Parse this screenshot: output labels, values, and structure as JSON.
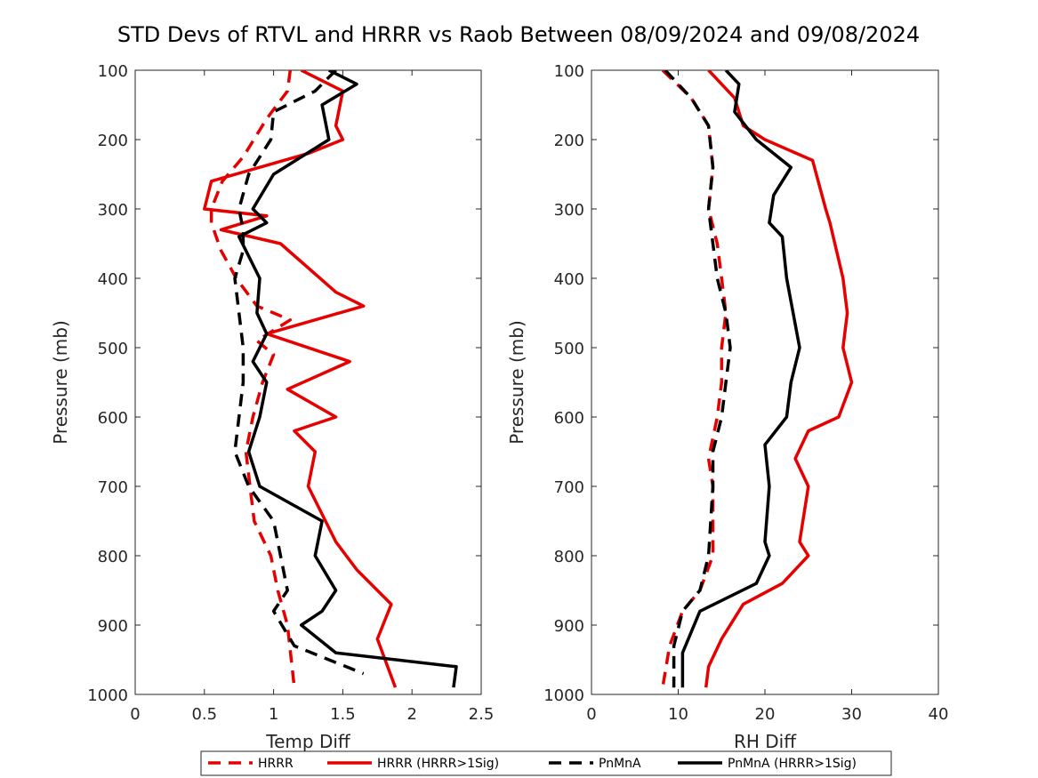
{
  "title": "STD Devs of RTVL and HRRR vs Raob Between 08/09/2024 and 09/08/2024",
  "colors": {
    "hrrr": "#e60000",
    "pnmna": "#000000"
  },
  "legend": {
    "placement": "bottom",
    "entries": [
      {
        "name": "HRRR",
        "color": "#e60000",
        "style": "dashed"
      },
      {
        "name": "HRRR (HRRR>1Sig)",
        "color": "#e60000",
        "style": "solid"
      },
      {
        "name": "PnMnA",
        "color": "#000000",
        "style": "dashed"
      },
      {
        "name": "PnMnA (HRRR>1Sig)",
        "color": "#000000",
        "style": "solid"
      }
    ]
  },
  "chart_data": [
    {
      "type": "line",
      "xlabel": "Temp Diff",
      "ylabel": "Pressure (mb)",
      "xlim": [
        0,
        2.5
      ],
      "ylim": [
        100,
        1000
      ],
      "y_reversed": true,
      "xticks": [
        "0",
        "0.5",
        "1",
        "1.5",
        "2",
        "2.5"
      ],
      "yticks": [
        "100",
        "200",
        "300",
        "400",
        "500",
        "600",
        "700",
        "800",
        "900",
        "1000"
      ],
      "grid": false,
      "series": [
        {
          "name": "HRRR",
          "color": "#e60000",
          "style": "dashed",
          "x": [
            1.12,
            1.1,
            0.95,
            0.78,
            0.63,
            0.55,
            0.55,
            0.62,
            0.73,
            0.88,
            1.12,
            0.88,
            1.0,
            0.92,
            0.85,
            0.8,
            0.83,
            0.86,
            0.98,
            1.03,
            1.1,
            1.15
          ],
          "y": [
            100,
            130,
            170,
            225,
            260,
            300,
            320,
            360,
            400,
            440,
            460,
            490,
            510,
            550,
            600,
            650,
            700,
            750,
            800,
            850,
            900,
            990
          ]
        },
        {
          "name": "HRRR (HRRR>1Sig)",
          "color": "#e60000",
          "style": "solid",
          "x": [
            1.2,
            1.5,
            1.45,
            1.5,
            1.25,
            0.55,
            0.5,
            0.95,
            0.62,
            1.05,
            1.45,
            1.65,
            0.95,
            1.55,
            1.1,
            1.45,
            1.15,
            1.3,
            1.25,
            1.45,
            1.6,
            1.85,
            1.75,
            1.88
          ],
          "y": [
            100,
            130,
            180,
            200,
            220,
            260,
            300,
            310,
            330,
            350,
            420,
            440,
            480,
            520,
            560,
            600,
            620,
            650,
            700,
            780,
            820,
            870,
            920,
            990
          ]
        },
        {
          "name": "PnMnA",
          "color": "#000000",
          "style": "dashed",
          "x": [
            1.45,
            1.3,
            1.0,
            0.98,
            0.82,
            0.75,
            0.78,
            0.78,
            0.72,
            0.75,
            0.78,
            0.78,
            0.75,
            0.72,
            0.82,
            1.0,
            1.05,
            1.1,
            1.0,
            1.15,
            1.65
          ],
          "y": [
            100,
            130,
            160,
            200,
            250,
            300,
            330,
            360,
            400,
            450,
            500,
            550,
            600,
            650,
            700,
            750,
            800,
            850,
            880,
            930,
            970
          ]
        },
        {
          "name": "PnMnA (HRRR>1Sig)",
          "color": "#000000",
          "style": "solid",
          "x": [
            1.4,
            1.6,
            1.35,
            1.4,
            1.0,
            0.85,
            0.95,
            0.75,
            0.9,
            0.88,
            0.95,
            0.85,
            0.95,
            0.9,
            0.82,
            0.9,
            1.35,
            1.3,
            1.45,
            1.35,
            1.2,
            1.45,
            2.32,
            2.3
          ],
          "y": [
            100,
            120,
            150,
            200,
            250,
            300,
            320,
            340,
            400,
            450,
            480,
            520,
            550,
            600,
            650,
            700,
            750,
            800,
            850,
            880,
            900,
            940,
            960,
            990
          ]
        }
      ]
    },
    {
      "type": "line",
      "xlabel": "RH Diff",
      "ylabel": "Pressure (mb)",
      "xlim": [
        0,
        40
      ],
      "ylim": [
        100,
        1000
      ],
      "y_reversed": true,
      "xticks": [
        "0",
        "10",
        "20",
        "30",
        "40"
      ],
      "yticks": [
        "100",
        "200",
        "300",
        "400",
        "500",
        "600",
        "700",
        "800",
        "900",
        "1000"
      ],
      "grid": false,
      "series": [
        {
          "name": "HRRR",
          "color": "#e60000",
          "style": "dashed",
          "x": [
            8.2,
            11.5,
            13.5,
            14.0,
            13.5,
            14.5,
            15.0,
            15.5,
            15.0,
            15.0,
            14.5,
            13.5,
            14.0,
            14.0,
            12.5,
            10.5,
            9.0,
            8.2
          ],
          "y": [
            100,
            140,
            180,
            240,
            300,
            350,
            400,
            450,
            500,
            550,
            600,
            660,
            700,
            800,
            850,
            880,
            930,
            990
          ]
        },
        {
          "name": "HRRR (HRRR>1Sig)",
          "color": "#e60000",
          "style": "solid",
          "x": [
            13.5,
            16.5,
            17.5,
            20.0,
            25.5,
            27.0,
            27.5,
            29.0,
            29.5,
            29.0,
            30.0,
            28.5,
            25.0,
            23.5,
            25.0,
            24.0,
            25.0,
            22.0,
            17.5,
            15.0,
            13.5,
            13.2
          ],
          "y": [
            100,
            140,
            180,
            200,
            230,
            300,
            320,
            400,
            450,
            500,
            550,
            600,
            620,
            660,
            700,
            780,
            800,
            840,
            870,
            920,
            960,
            990
          ]
        },
        {
          "name": "PnMnA",
          "color": "#000000",
          "style": "dashed",
          "x": [
            8.5,
            11.5,
            13.5,
            14.0,
            13.5,
            14.0,
            14.5,
            15.5,
            16.0,
            15.5,
            15.0,
            14.0,
            14.0,
            13.5,
            12.5,
            10.5,
            9.5,
            9.5
          ],
          "y": [
            100,
            140,
            180,
            240,
            300,
            350,
            400,
            450,
            500,
            550,
            600,
            650,
            700,
            800,
            850,
            880,
            930,
            990
          ]
        },
        {
          "name": "PnMnA (HRRR>1Sig)",
          "color": "#000000",
          "style": "solid",
          "x": [
            15.5,
            17.0,
            16.5,
            19.0,
            23.0,
            21.0,
            20.5,
            22.0,
            22.5,
            24.0,
            23.0,
            22.5,
            20.0,
            20.5,
            20.0,
            20.5,
            19.0,
            12.5,
            10.5,
            10.5
          ],
          "y": [
            100,
            120,
            160,
            200,
            240,
            280,
            320,
            340,
            400,
            500,
            550,
            600,
            640,
            700,
            780,
            800,
            840,
            880,
            940,
            990
          ]
        }
      ]
    }
  ]
}
